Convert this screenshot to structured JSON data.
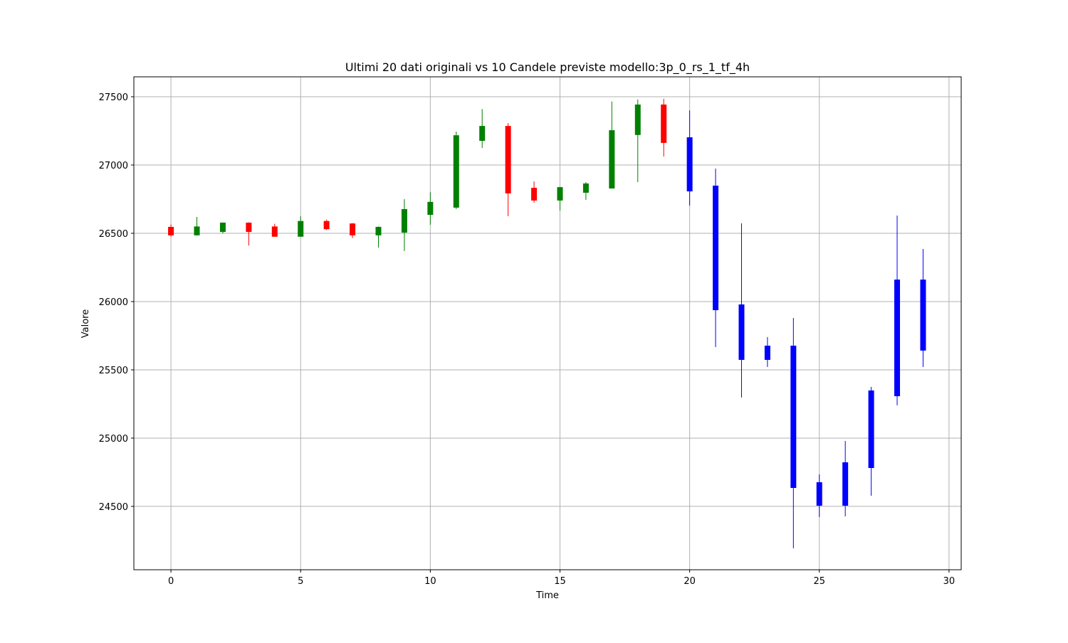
{
  "chart_data": {
    "type": "candlestick",
    "title": "Ultimi 20 dati originali vs 10 Candele previste modello:3p_0_rs_1_tf_4h",
    "x_label": "Time",
    "y_label": "Valore",
    "xlim": [
      -1.43,
      30.47
    ],
    "xticks": [
      0,
      5,
      10,
      15,
      20,
      25,
      30
    ],
    "ylim": [
      24036,
      27646
    ],
    "yticks": [
      24500,
      25000,
      25500,
      26000,
      26500,
      27000,
      27500
    ],
    "grid": true,
    "series": [
      {
        "up_color": "green",
        "down_color": "red",
        "x": [
          0,
          1,
          2,
          3,
          4,
          5,
          6,
          7,
          8,
          9,
          10,
          11,
          12,
          13,
          14,
          15,
          16,
          17,
          18,
          19
        ],
        "open": [
          26547,
          26485,
          26510,
          26578,
          26550,
          26475,
          26590,
          26572,
          26485,
          26505,
          26635,
          26688,
          27177,
          27286,
          26833,
          26740,
          26797,
          26828,
          27220,
          27443
        ],
        "high": [
          26565,
          26620,
          26580,
          26580,
          26570,
          26625,
          26600,
          26575,
          26550,
          26750,
          26800,
          27245,
          27410,
          27307,
          26880,
          26840,
          26875,
          27465,
          27480,
          27485
        ],
        "low": [
          26475,
          26485,
          26500,
          26410,
          26475,
          26475,
          26525,
          26465,
          26395,
          26370,
          26563,
          26677,
          27125,
          26625,
          26724,
          26667,
          26745,
          26828,
          26875,
          27062
        ],
        "close": [
          26485,
          26550,
          26578,
          26510,
          26475,
          26590,
          26530,
          26485,
          26547,
          26677,
          26730,
          27218,
          27286,
          26792,
          26740,
          26838,
          26865,
          27255,
          27443,
          27162
        ]
      },
      {
        "color": "blue",
        "x": [
          20,
          21,
          22,
          23,
          24,
          25,
          26,
          27,
          28,
          29
        ],
        "open": [
          27203,
          26849,
          25979,
          25677,
          25677,
          24677,
          24505,
          24781,
          25307,
          26161
        ],
        "high": [
          27400,
          26974,
          26573,
          25740,
          25880,
          24734,
          24979,
          25375,
          26630,
          26385
        ],
        "low": [
          26703,
          25667,
          25297,
          25521,
          24193,
          24422,
          24427,
          24578,
          25240,
          25521
        ],
        "close": [
          26807,
          25937,
          25573,
          25573,
          24635,
          24505,
          24823,
          25349,
          26161,
          25641
        ]
      }
    ]
  }
}
